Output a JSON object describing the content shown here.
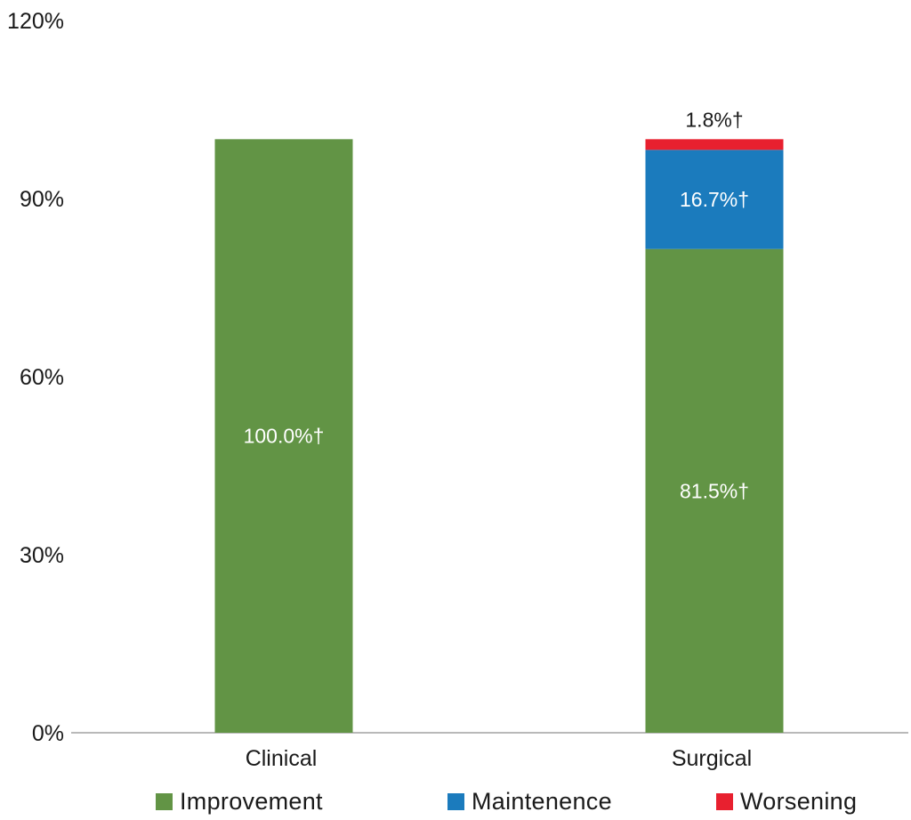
{
  "chart_data": {
    "type": "bar",
    "stacked": true,
    "categories": [
      "Clinical",
      "Surgical"
    ],
    "series": [
      {
        "name": "Improvement",
        "color": "#629445",
        "values": [
          100.0,
          81.5
        ],
        "labels": [
          "100.0%†",
          "81.5%†"
        ]
      },
      {
        "name": "Maintenence",
        "color": "#1b7bbd",
        "values": [
          0,
          16.7
        ],
        "labels": [
          "",
          "16.7%†"
        ]
      },
      {
        "name": "Worsening",
        "color": "#e8202f",
        "values": [
          0,
          1.8
        ],
        "labels": [
          "",
          "1.8%†"
        ]
      }
    ],
    "ylim": [
      0,
      120
    ],
    "yticks": [
      "0%",
      "30%",
      "60%",
      "90%",
      "120%"
    ],
    "ytick_values": [
      0,
      30,
      60,
      90,
      120
    ],
    "grid": false,
    "legend_position": "bottom",
    "title": "",
    "xlabel": "",
    "ylabel": ""
  }
}
